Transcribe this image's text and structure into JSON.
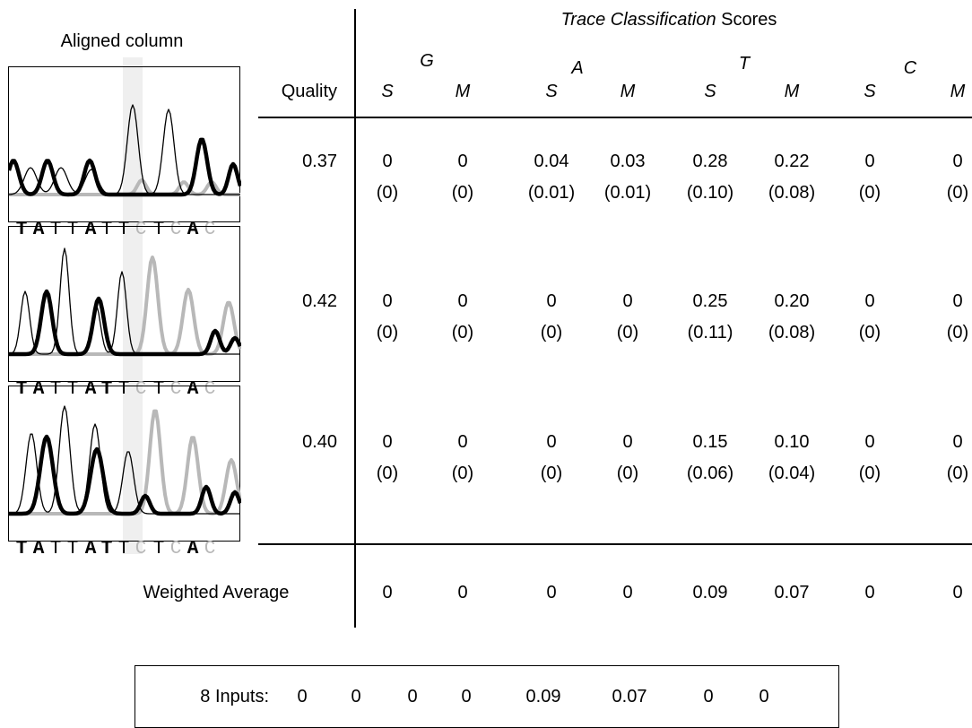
{
  "left_title": "Aligned column",
  "right_title_italic": "Trace Classification",
  "right_title_rest": " Scores",
  "quality_header": "Quality",
  "bases": [
    "G",
    "A",
    "T",
    "C"
  ],
  "sub_cols": [
    "S",
    "M",
    "S",
    "M",
    "S",
    "M",
    "S",
    "M"
  ],
  "rows": [
    {
      "quality": "0.37",
      "scores": [
        "0",
        "0",
        "0.04",
        "0.03",
        "0.28",
        "0.22",
        "0",
        "0"
      ],
      "sub": [
        "(0)",
        "(0)",
        "(0.01)",
        "(0.01)",
        "(0.10)",
        "(0.08)",
        "(0)",
        "(0)"
      ],
      "sequence": [
        {
          "b": "T",
          "bold": true,
          "gray": false
        },
        {
          "b": "A",
          "bold": true,
          "gray": false
        },
        {
          "b": "T",
          "bold": false,
          "gray": false
        },
        {
          "b": "T",
          "bold": false,
          "gray": false
        },
        {
          "b": "A",
          "bold": true,
          "gray": false
        },
        {
          "b": "T",
          "bold": false,
          "gray": false
        },
        {
          "b": "T",
          "bold": false,
          "gray": false
        },
        {
          "b": "C",
          "bold": false,
          "gray": true
        },
        {
          "b": "T",
          "bold": false,
          "gray": false
        },
        {
          "b": "C",
          "bold": false,
          "gray": true
        },
        {
          "b": "A",
          "bold": true,
          "gray": false
        },
        {
          "b": "C",
          "bold": false,
          "gray": true
        }
      ]
    },
    {
      "quality": "0.42",
      "scores": [
        "0",
        "0",
        "0",
        "0",
        "0.25",
        "0.20",
        "0",
        "0"
      ],
      "sub": [
        "(0)",
        "(0)",
        "(0)",
        "(0)",
        "(0.11)",
        "(0.08)",
        "(0)",
        "(0)"
      ],
      "sequence": [
        {
          "b": "T",
          "bold": true,
          "gray": false
        },
        {
          "b": "A",
          "bold": true,
          "gray": false
        },
        {
          "b": "T",
          "bold": false,
          "gray": false
        },
        {
          "b": "T",
          "bold": false,
          "gray": false
        },
        {
          "b": "A",
          "bold": true,
          "gray": false
        },
        {
          "b": "T",
          "bold": true,
          "gray": false
        },
        {
          "b": "T",
          "bold": false,
          "gray": false
        },
        {
          "b": "C",
          "bold": false,
          "gray": true
        },
        {
          "b": "T",
          "bold": false,
          "gray": false
        },
        {
          "b": "C",
          "bold": false,
          "gray": true
        },
        {
          "b": "A",
          "bold": true,
          "gray": false
        },
        {
          "b": "C",
          "bold": false,
          "gray": true
        }
      ]
    },
    {
      "quality": "0.40",
      "scores": [
        "0",
        "0",
        "0",
        "0",
        "0.15",
        "0.10",
        "0",
        "0"
      ],
      "sub": [
        "(0)",
        "(0)",
        "(0)",
        "(0)",
        "(0.06)",
        "(0.04)",
        "(0)",
        "(0)"
      ],
      "sequence": [
        {
          "b": "T",
          "bold": true,
          "gray": false
        },
        {
          "b": "A",
          "bold": true,
          "gray": false
        },
        {
          "b": "T",
          "bold": false,
          "gray": false
        },
        {
          "b": "T",
          "bold": false,
          "gray": false
        },
        {
          "b": "A",
          "bold": true,
          "gray": false
        },
        {
          "b": "T",
          "bold": true,
          "gray": false
        },
        {
          "b": "T",
          "bold": false,
          "gray": false
        },
        {
          "b": "C",
          "bold": false,
          "gray": true
        },
        {
          "b": "T",
          "bold": false,
          "gray": false
        },
        {
          "b": "C",
          "bold": false,
          "gray": true
        },
        {
          "b": "A",
          "bold": true,
          "gray": false
        },
        {
          "b": "C",
          "bold": false,
          "gray": true
        }
      ]
    }
  ],
  "weighted_label": "Weighted Average",
  "weighted": [
    "0",
    "0",
    "0",
    "0",
    "0.09",
    "0.07",
    "0",
    "0"
  ],
  "summary_label": "8 Inputs:",
  "summary": [
    "0",
    "0",
    "0",
    "0",
    "0.09",
    "0.07",
    "0",
    "0"
  ],
  "colors": {
    "trace_dark": "#000000",
    "trace_gray": "#b8b8b8",
    "column_band": "#efefef"
  }
}
